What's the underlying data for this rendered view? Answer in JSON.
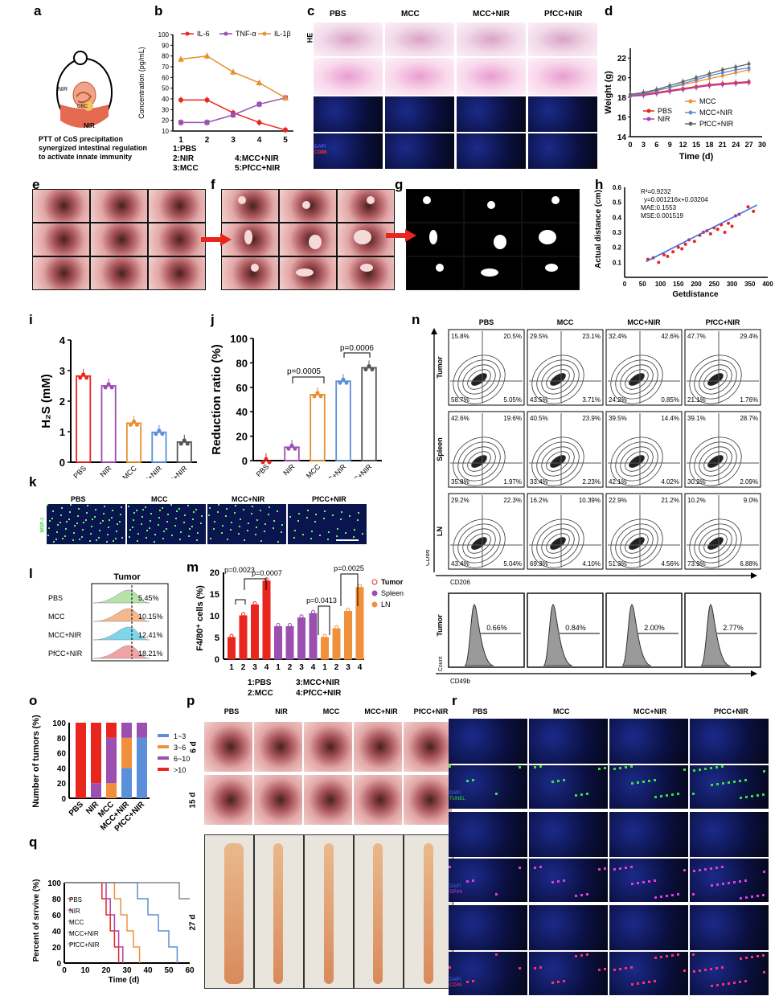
{
  "panels": {
    "a": {
      "label": "a",
      "caption_lines": [
        "PTT of CoS precipitation",
        "synergized intestinal regulation",
        "to activate innate immunity"
      ],
      "nir": "NIR",
      "nir2": "NIR",
      "crc": "CRC"
    },
    "b": {
      "label": "b",
      "legend": [
        "IL-6",
        "TNF-α",
        "IL-1β"
      ],
      "ylabel": "Concentration (pg/mL)",
      "yticks": [
        "10",
        "20",
        "30",
        "40",
        "50",
        "60",
        "70",
        "80",
        "90",
        "100"
      ],
      "xticks": [
        "1",
        "2",
        "3",
        "4",
        "5"
      ],
      "groups": [
        "1:PBS",
        "2:NIR",
        "3:MCC",
        "4:MCC+NIR",
        "5:PfCC+NIR"
      ]
    },
    "c": {
      "label": "c",
      "cols": [
        "PBS",
        "MCC",
        "MCC+NIR",
        "PfCC+NIR"
      ],
      "row": "HE",
      "dapi": "DAPI",
      "cd86": "CD86"
    },
    "d": {
      "label": "d",
      "ylabel": "Weight (g)",
      "xlabel": "Time (d)",
      "yticks": [
        "14",
        "16",
        "18",
        "20",
        "22"
      ],
      "xticks": [
        "0",
        "3",
        "6",
        "9",
        "12",
        "15",
        "18",
        "21",
        "24",
        "27",
        "30"
      ],
      "legend": [
        "PBS",
        "NIR",
        "MCC",
        "MCC+NIR",
        "PfCC+NIR"
      ]
    },
    "e": {
      "label": "e"
    },
    "f": {
      "label": "f"
    },
    "g": {
      "label": "g"
    },
    "h": {
      "label": "h",
      "ylabel": "Actual distance (cm)",
      "xlabel": "Getdistance",
      "r2": "R²=0.9232",
      "eq": "y=0.001216x+0.03204",
      "mae": "MAE:0.1553",
      "mse": "MSE:0.001519",
      "yticks": [
        "0.1",
        "0.2",
        "0.3",
        "0.4",
        "0.5",
        "0.6"
      ],
      "xticks": [
        "0",
        "50",
        "100",
        "150",
        "200",
        "250",
        "300",
        "350",
        "400"
      ]
    },
    "i": {
      "label": "i",
      "ylabel": "H₂S (mM)",
      "yticks": [
        "0",
        "1",
        "2",
        "3",
        "4"
      ],
      "cats": [
        "PBS",
        "NIR",
        "MCC",
        "MCC+NIR",
        "PfCC+NIR"
      ]
    },
    "j": {
      "label": "j",
      "ylabel": "Reduction ratio (%)",
      "yticks": [
        "0",
        "20",
        "40",
        "60",
        "80",
        "100"
      ],
      "cats": [
        "PBS",
        "NIR",
        "MCC",
        "MCC+NIR",
        "PfCC+NIR"
      ],
      "p1": "p=0.0005",
      "p2": "p=0.0006"
    },
    "k": {
      "label": "k",
      "cols": [
        "PBS",
        "MCC",
        "MCC+NIR",
        "PfCC+NIR"
      ],
      "stain": "WSP-1"
    },
    "l": {
      "label": "l",
      "title": "Tumor",
      "rows": [
        "PBS",
        "MCC",
        "MCC+NIR",
        "PfCC+NIR"
      ],
      "vals": [
        "5.45%",
        "10.15%",
        "12.41%",
        "18.21%"
      ]
    },
    "m": {
      "label": "m",
      "ylabel": "F4/80⁺ cells (%)",
      "yticks": [
        "0",
        "5",
        "10",
        "15",
        "20"
      ],
      "legend": [
        "Tumor",
        "Spleen",
        "LN"
      ],
      "p": [
        "p=0.0023",
        "p=0.0007",
        "p=0.0413",
        "p=0.0025"
      ],
      "xticks": [
        "1",
        "2",
        "3",
        "4",
        "1",
        "2",
        "3",
        "4",
        "1",
        "2",
        "3",
        "4"
      ],
      "groups": [
        "1:PBS",
        "2:MCC",
        "3:MCC+NIR",
        "4:PfCC+NIR"
      ]
    },
    "n": {
      "label": "n",
      "cols": [
        "PBS",
        "MCC",
        "MCC+NIR",
        "PfCC+NIR"
      ],
      "rows": [
        "Tumor",
        "Spleen",
        "LN"
      ],
      "xaxis": "CD206",
      "yaxis": "CD86",
      "quads": [
        [
          [
            "15.8%",
            "20.5%",
            "58.7%",
            "5.05%"
          ],
          [
            "29.5%",
            "23.1%",
            "43.5%",
            "3.71%"
          ],
          [
            "32.4%",
            "42.6%",
            "24.2%",
            "0.85%"
          ],
          [
            "47.7%",
            "29.4%",
            "21.1%",
            "1.76%"
          ]
        ],
        [
          [
            "42.6%",
            "19.6%",
            "35.8%",
            "1.97%"
          ],
          [
            "40.5%",
            "23.9%",
            "33.4%",
            "2.23%"
          ],
          [
            "39.5%",
            "14.4%",
            "42.1%",
            "4.02%"
          ],
          [
            "39.1%",
            "28.7%",
            "30.2%",
            "2.09%"
          ]
        ],
        [
          [
            "29.2%",
            "22.3%",
            "43.4%",
            "5.04%"
          ],
          [
            "16.2%",
            "10.39%",
            "69.3%",
            "4.10%"
          ],
          [
            "22.9%",
            "21.2%",
            "51.3%",
            "4.56%"
          ],
          [
            "10.2%",
            "9.0%",
            "73.9%",
            "6.88%"
          ]
        ]
      ],
      "hist_row": "Tumor",
      "hist_x": "CD49b",
      "hist_y": "Count",
      "hist_vals": [
        "0.66%",
        "0.84%",
        "2.00%",
        "2.77%"
      ]
    },
    "o": {
      "label": "o",
      "ylabel": "Number of tumors (%)",
      "yticks": [
        "0",
        "20",
        "40",
        "60",
        "80",
        "100"
      ],
      "cats": [
        "PBS",
        "NIR",
        "MCC",
        "MCC+NIR",
        "PfCC+NIR"
      ],
      "legend": [
        "1~3",
        "3~6",
        "6~10",
        ">10"
      ]
    },
    "p": {
      "label": "p",
      "cols": [
        "PBS",
        "NIR",
        "MCC",
        "MCC+NIR",
        "PfCC+NIR"
      ],
      "rows": [
        "6 d",
        "15 d",
        "27 d"
      ]
    },
    "q": {
      "label": "q",
      "ylabel": "Percent of srrvive (%)",
      "xlabel": "Time (d)",
      "yticks": [
        "0",
        "20",
        "40",
        "60",
        "80",
        "100"
      ],
      "xticks": [
        "0",
        "10",
        "20",
        "30",
        "40",
        "50",
        "60"
      ],
      "legend": [
        "PBS",
        "NIR",
        "MCC",
        "MCC+NIR",
        "PfCC+NIR"
      ]
    },
    "r": {
      "label": "r",
      "cols": [
        "PBS",
        "MCC",
        "MCC+NIR",
        "PfCC+NIR"
      ],
      "stains": [
        [
          "DAPI",
          "TUNEL"
        ],
        [
          "DAPI",
          "GPX4"
        ],
        [
          "DAPI",
          "CD49"
        ]
      ]
    }
  },
  "chart_data": [
    {
      "type": "line",
      "panel": "b",
      "x": [
        1,
        2,
        3,
        4,
        5
      ],
      "ylim": [
        10,
        100
      ],
      "series": [
        {
          "name": "IL-6",
          "values": [
            39,
            39,
            27,
            18,
            11
          ]
        },
        {
          "name": "TNF-α",
          "values": [
            18,
            18,
            25,
            35,
            41
          ]
        },
        {
          "name": "IL-1β",
          "values": [
            77,
            80,
            65,
            55,
            41
          ]
        }
      ]
    },
    {
      "type": "line",
      "panel": "d",
      "x": [
        0,
        3,
        6,
        9,
        12,
        15,
        18,
        21,
        24,
        27
      ],
      "ylim": [
        14,
        23
      ],
      "series": [
        {
          "name": "PBS",
          "values": [
            18.2,
            18.3,
            18.5,
            18.7,
            18.9,
            19.1,
            19.3,
            19.4,
            19.5,
            19.6
          ]
        },
        {
          "name": "NIR",
          "values": [
            18.1,
            18.2,
            18.4,
            18.6,
            18.8,
            19.0,
            19.2,
            19.3,
            19.4,
            19.5
          ]
        },
        {
          "name": "MCC",
          "values": [
            18.3,
            18.5,
            18.7,
            19.0,
            19.3,
            19.6,
            19.9,
            20.2,
            20.5,
            20.8
          ]
        },
        {
          "name": "MCC+NIR",
          "values": [
            18.2,
            18.4,
            18.7,
            19.0,
            19.4,
            19.8,
            20.2,
            20.5,
            20.8,
            21.0
          ]
        },
        {
          "name": "PfCC+NIR",
          "values": [
            18.3,
            18.5,
            18.8,
            19.2,
            19.6,
            20.0,
            20.4,
            20.8,
            21.1,
            21.4
          ]
        }
      ]
    },
    {
      "type": "scatter",
      "panel": "h",
      "xlim": [
        0,
        400
      ],
      "ylim": [
        0,
        0.6
      ],
      "x": [
        65,
        80,
        95,
        110,
        120,
        135,
        150,
        160,
        170,
        180,
        195,
        210,
        220,
        230,
        240,
        250,
        260,
        270,
        280,
        290,
        300,
        310,
        320,
        345,
        360
      ],
      "y": [
        0.12,
        0.13,
        0.1,
        0.15,
        0.14,
        0.17,
        0.2,
        0.19,
        0.22,
        0.25,
        0.24,
        0.28,
        0.3,
        0.31,
        0.29,
        0.33,
        0.32,
        0.35,
        0.3,
        0.36,
        0.34,
        0.41,
        0.42,
        0.47,
        0.44
      ]
    },
    {
      "type": "bar",
      "panel": "i",
      "categories": [
        "PBS",
        "NIR",
        "MCC",
        "MCC+NIR",
        "PfCC+NIR"
      ],
      "values": [
        2.82,
        2.5,
        1.28,
        0.98,
        0.66
      ],
      "ylim": [
        0,
        4
      ]
    },
    {
      "type": "bar",
      "panel": "j",
      "categories": [
        "PBS",
        "NIR",
        "MCC",
        "MCC+NIR",
        "PfCC+NIR"
      ],
      "values": [
        0,
        11,
        54,
        65,
        76
      ],
      "ylim": [
        0,
        100
      ]
    },
    {
      "type": "bar",
      "panel": "m",
      "categories": [
        "1",
        "2",
        "3",
        "4",
        "1",
        "2",
        "3",
        "4",
        "1",
        "2",
        "3",
        "4"
      ],
      "values": [
        5,
        10,
        12.5,
        18,
        7.5,
        7.5,
        9.5,
        10.5,
        5,
        7,
        11,
        16.5
      ],
      "ylim": [
        0,
        20
      ]
    },
    {
      "type": "bar",
      "panel": "o",
      "categories": [
        "PBS",
        "NIR",
        "MCC",
        "MCC+NIR",
        "PfCC+NIR"
      ],
      "series": [
        {
          "name": "1~3",
          "values": [
            0,
            0,
            0,
            40,
            80
          ]
        },
        {
          "name": "3~6",
          "values": [
            0,
            0,
            20,
            40,
            0
          ]
        },
        {
          "name": "6~10",
          "values": [
            0,
            20,
            60,
            20,
            20
          ]
        },
        {
          "name": ">10",
          "values": [
            100,
            80,
            20,
            0,
            0
          ]
        }
      ],
      "ylim": [
        0,
        100
      ]
    },
    {
      "type": "line",
      "panel": "q",
      "xlim": [
        0,
        60
      ],
      "ylim": [
        0,
        100
      ],
      "series": [
        {
          "name": "PBS",
          "x": [
            0,
            18,
            20,
            22,
            24,
            26
          ],
          "values": [
            100,
            80,
            60,
            40,
            20,
            0
          ]
        },
        {
          "name": "NIR",
          "x": [
            0,
            20,
            22,
            24,
            26,
            28
          ],
          "values": [
            100,
            80,
            60,
            40,
            20,
            0
          ]
        },
        {
          "name": "MCC",
          "x": [
            0,
            24,
            27,
            30,
            33,
            36
          ],
          "values": [
            100,
            80,
            60,
            40,
            20,
            0
          ]
        },
        {
          "name": "MCC+NIR",
          "x": [
            0,
            35,
            40,
            45,
            50,
            54
          ],
          "values": [
            100,
            80,
            60,
            40,
            20,
            0
          ]
        },
        {
          "name": "PfCC+NIR",
          "x": [
            0,
            55,
            60
          ],
          "values": [
            100,
            80,
            80
          ]
        }
      ]
    }
  ]
}
